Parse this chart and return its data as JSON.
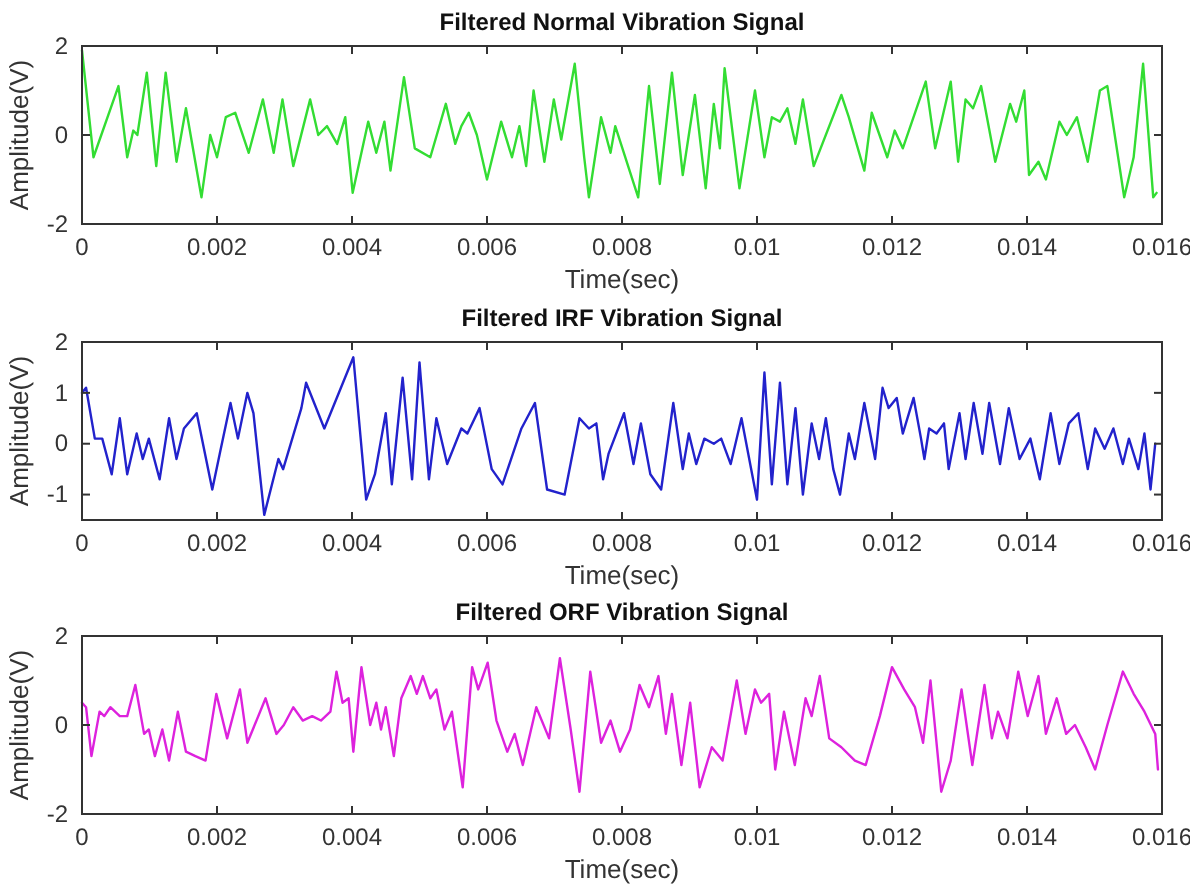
{
  "chart_data": [
    {
      "type": "line",
      "title": "Filtered Normal Vibration Signal",
      "xlabel": "Time(sec)",
      "ylabel": "Amplitude(V)",
      "xlim": [
        0,
        0.016
      ],
      "ylim": [
        -2,
        2
      ],
      "xticks": [
        0,
        0.002,
        0.004,
        0.006,
        0.008,
        0.01,
        0.012,
        0.014,
        0.016
      ],
      "yticks": [
        -2,
        0,
        2
      ],
      "x": [
        0,
        0.00017,
        0.00054,
        0.00067,
        0.00076,
        0.00082,
        0.00096,
        0.0011,
        0.00124,
        0.0014,
        0.00154,
        0.00177,
        0.0019,
        0.002,
        0.00213,
        0.00227,
        0.00247,
        0.00268,
        0.00284,
        0.00297,
        0.00313,
        0.00338,
        0.0035,
        0.00363,
        0.00378,
        0.0039,
        0.00401,
        0.00424,
        0.00436,
        0.00448,
        0.00457,
        0.00477,
        0.00493,
        0.00516,
        0.00539,
        0.00553,
        0.00562,
        0.00573,
        0.00585,
        0.006,
        0.00621,
        0.00637,
        0.00648,
        0.00658,
        0.00669,
        0.00685,
        0.00699,
        0.0071,
        0.0073,
        0.00744,
        0.00751,
        0.00769,
        0.00783,
        0.0079,
        0.00824,
        0.0084,
        0.00856,
        0.00874,
        0.0089,
        0.00908,
        0.00924,
        0.00936,
        0.00945,
        0.00952,
        0.00974,
        0.00997,
        0.01011,
        0.01022,
        0.01034,
        0.01045,
        0.01057,
        0.01068,
        0.01084,
        0.01125,
        0.01136,
        0.01159,
        0.0117,
        0.01193,
        0.01204,
        0.01216,
        0.0125,
        0.01264,
        0.01287,
        0.01298,
        0.01309,
        0.0132,
        0.01332,
        0.01353,
        0.01375,
        0.01384,
        0.01396,
        0.01403,
        0.01417,
        0.01428,
        0.01448,
        0.01459,
        0.01474,
        0.0149,
        0.01508,
        0.01519,
        0.01544,
        0.01558,
        0.01572,
        0.01587,
        0.01592
      ],
      "series": [
        {
          "color": "#33dd33",
          "values": [
            1.9,
            -0.5,
            1.1,
            -0.5,
            0.1,
            0,
            1.4,
            -0.7,
            1.4,
            -0.6,
            0.6,
            -1.4,
            0,
            -0.5,
            0.4,
            0.5,
            -0.4,
            0.8,
            -0.4,
            0.8,
            -0.7,
            0.8,
            0,
            0.2,
            -0.2,
            0.4,
            -1.3,
            0.3,
            -0.4,
            0.3,
            -0.8,
            1.3,
            -0.3,
            -0.5,
            0.7,
            -0.2,
            0.2,
            0.5,
            0,
            -1,
            0.3,
            -0.5,
            0.2,
            -0.7,
            1,
            -0.6,
            0.8,
            -0.1,
            1.6,
            -0.5,
            -1.4,
            0.4,
            -0.4,
            0.2,
            -1.4,
            1.1,
            -1.1,
            1.4,
            -0.9,
            0.9,
            -1.2,
            0.7,
            -0.3,
            1.5,
            -1.2,
            1,
            -0.5,
            0.4,
            0.3,
            0.6,
            -0.2,
            0.8,
            -0.7,
            0.9,
            0.4,
            -0.8,
            0.5,
            -0.5,
            0.1,
            -0.3,
            1.2,
            -0.3,
            1.2,
            -0.6,
            0.8,
            0.6,
            1.1,
            -0.6,
            0.7,
            0.3,
            1,
            -0.9,
            -0.6,
            -1,
            0.3,
            0,
            0.4,
            -0.6,
            1,
            1.1,
            -1.4,
            -0.5,
            1.6,
            -1.4,
            -1.3
          ]
        }
      ]
    },
    {
      "type": "line",
      "title": "Filtered IRF Vibration Signal",
      "xlabel": "Time(sec)",
      "ylabel": "Amplitude(V)",
      "xlim": [
        0,
        0.016
      ],
      "ylim": [
        -1.5,
        2
      ],
      "xticks": [
        0,
        0.002,
        0.004,
        0.006,
        0.008,
        0.01,
        0.012,
        0.014,
        0.016
      ],
      "yticks": [
        -1,
        0,
        1,
        2
      ],
      "x": [
        0,
        6e-05,
        0.00019,
        0.0003,
        0.00044,
        0.00056,
        0.00067,
        0.00081,
        0.0009,
        0.00099,
        0.00115,
        0.00129,
        0.0014,
        0.00151,
        0.0017,
        0.00193,
        0.00204,
        0.0022,
        0.00231,
        0.00245,
        0.00254,
        0.0027,
        0.00291,
        0.00298,
        0.00311,
        0.00325,
        0.00332,
        0.00345,
        0.00359,
        0.00373,
        0.00402,
        0.00421,
        0.00434,
        0.0045,
        0.00459,
        0.00475,
        0.00489,
        0.005,
        0.00514,
        0.00525,
        0.00541,
        0.00562,
        0.00571,
        0.00589,
        0.00607,
        0.00623,
        0.00651,
        0.00671,
        0.00689,
        0.00715,
        0.00737,
        0.00751,
        0.00762,
        0.00772,
        0.0078,
        0.00803,
        0.00817,
        0.00828,
        0.00842,
        0.00858,
        0.00876,
        0.0089,
        0.00899,
        0.0091,
        0.00922,
        0.00936,
        0.00947,
        0.00961,
        0.00977,
        0.01,
        0.01011,
        0.01022,
        0.01034,
        0.01045,
        0.01057,
        0.01068,
        0.01081,
        0.01092,
        0.01102,
        0.01113,
        0.01123,
        0.01136,
        0.01145,
        0.01159,
        0.01175,
        0.01186,
        0.01195,
        0.01207,
        0.01216,
        0.01232,
        0.01243,
        0.01248,
        0.01255,
        0.01266,
        0.01277,
        0.01284,
        0.013,
        0.01309,
        0.01321,
        0.01334,
        0.01344,
        0.0136,
        0.01373,
        0.01389,
        0.01405,
        0.01419,
        0.01435,
        0.01448,
        0.01462,
        0.01476,
        0.0149,
        0.01501,
        0.01515,
        0.01528,
        0.01542,
        0.01551,
        0.01565,
        0.01574,
        0.01583,
        0.0159
      ],
      "series": [
        {
          "color": "#2222cc",
          "values": [
            1,
            1.1,
            0.1,
            0.1,
            -0.6,
            0.5,
            -0.6,
            0.2,
            -0.3,
            0.1,
            -0.7,
            0.5,
            -0.3,
            0.3,
            0.6,
            -0.9,
            -0.2,
            0.8,
            0.1,
            1,
            0.6,
            -1.4,
            -0.3,
            -0.5,
            null,
            0.7,
            1.2,
            null,
            0.3,
            null,
            1.7,
            -1.1,
            -0.6,
            0.6,
            -0.8,
            1.3,
            -0.7,
            1.6,
            -0.7,
            0.5,
            -0.4,
            0.3,
            0.2,
            0.7,
            -0.5,
            -0.8,
            0.3,
            0.8,
            -0.9,
            -1,
            0.5,
            0.3,
            0.4,
            -0.7,
            -0.2,
            0.6,
            -0.4,
            0.4,
            -0.6,
            -0.9,
            0.8,
            -0.5,
            0.2,
            -0.4,
            0.1,
            0,
            0.1,
            -0.4,
            0.5,
            -1.1,
            1.4,
            -0.8,
            1.2,
            -0.8,
            0.7,
            -1,
            0.4,
            -0.3,
            0.5,
            -0.5,
            -1,
            0.2,
            -0.3,
            0.8,
            -0.3,
            1.1,
            0.7,
            0.9,
            0.2,
            0.9,
            0.1,
            -0.3,
            0.3,
            0.2,
            0.4,
            -0.5,
            0.6,
            -0.3,
            0.8,
            -0.2,
            0.8,
            -0.4,
            0.7,
            -0.3,
            0.1,
            -0.7,
            0.6,
            -0.4,
            0.4,
            0.6,
            -0.5,
            0.3,
            -0.1,
            0.3,
            -0.4,
            0.1,
            -0.5,
            0.2,
            -0.9,
            0
          ]
        }
      ]
    },
    {
      "type": "line",
      "title": "Filtered ORF Vibration Signal",
      "xlabel": "Time(sec)",
      "ylabel": "Amplitude(V)",
      "xlim": [
        0,
        0.016
      ],
      "ylim": [
        -2,
        2
      ],
      "xticks": [
        0,
        0.002,
        0.004,
        0.006,
        0.008,
        0.01,
        0.012,
        0.014,
        0.016
      ],
      "yticks": [
        -2,
        0,
        2
      ],
      "x": [
        0,
        6e-05,
        0.00014,
        0.00026,
        0.00033,
        0.00042,
        0.00056,
        0.00067,
        0.00079,
        0.00092,
        0.00099,
        0.00108,
        0.00119,
        0.00129,
        0.00142,
        0.00154,
        0.00168,
        0.00183,
        0.00199,
        0.00215,
        0.00234,
        0.00245,
        0.00272,
        0.00288,
        0.00299,
        0.00313,
        0.00327,
        0.00341,
        0.00354,
        0.00368,
        0.00377,
        0.00386,
        0.00395,
        0.00402,
        0.00414,
        0.00427,
        0.00436,
        0.00443,
        0.0045,
        0.00462,
        0.00473,
        0.00487,
        0.00496,
        0.00505,
        0.00516,
        0.00525,
        0.00537,
        0.00548,
        0.00564,
        0.00578,
        0.00587,
        0.00601,
        0.00614,
        0.0063,
        0.00641,
        0.00653,
        0.00673,
        0.00692,
        0.00708,
        0.00724,
        0.00737,
        0.00753,
        0.00769,
        0.00783,
        0.00797,
        0.00812,
        0.00826,
        0.0084,
        0.00854,
        0.00865,
        0.00874,
        0.00888,
        0.00901,
        0.00915,
        0.00933,
        0.00949,
        0.0097,
        0.00983,
        0.00997,
        0.01006,
        0.01018,
        0.01027,
        0.0104,
        0.01056,
        0.01072,
        0.01081,
        0.01093,
        0.01107,
        0.01125,
        0.01145,
        0.01161,
        0.01182,
        0.012,
        0.01218,
        0.01234,
        0.01246,
        0.01257,
        0.01273,
        0.01287,
        0.01303,
        0.01319,
        0.01337,
        0.01348,
        0.01357,
        0.01371,
        0.01387,
        0.01401,
        0.01417,
        0.01428,
        0.01444,
        0.01458,
        0.01471,
        0.01487,
        0.01501,
        0.01519,
        0.01542,
        0.01558,
        0.01574,
        0.0159,
        0.01594
      ],
      "series": [
        {
          "color": "#dd22dd",
          "values": [
            0.5,
            0.4,
            -0.7,
            0.3,
            0.2,
            0.4,
            0.2,
            0.2,
            0.9,
            -0.2,
            -0.1,
            -0.7,
            -0.1,
            -0.8,
            0.3,
            -0.6,
            -0.7,
            -0.8,
            0.7,
            -0.3,
            0.8,
            -0.4,
            0.6,
            -0.2,
            0,
            0.4,
            0.1,
            0.2,
            0.1,
            0.3,
            1.2,
            0.5,
            0.6,
            -0.6,
            1.3,
            0,
            0.5,
            -0.1,
            0.4,
            -0.7,
            0.6,
            1.1,
            0.7,
            1.1,
            0.6,
            0.8,
            -0.1,
            0.3,
            -1.4,
            1.3,
            0.8,
            1.4,
            0.1,
            -0.6,
            -0.2,
            -0.9,
            0.4,
            -0.3,
            1.5,
            -0.1,
            -1.5,
            1.2,
            -0.4,
            0.1,
            -0.6,
            -0.1,
            0.9,
            0.4,
            1.1,
            -0.2,
            0.7,
            -0.9,
            0.5,
            -1.4,
            -0.5,
            -0.8,
            1,
            -0.2,
            0.8,
            0.5,
            0.7,
            -1,
            0.3,
            -0.9,
            0.6,
            0.2,
            1.1,
            -0.3,
            -0.5,
            -0.8,
            -0.9,
            0.2,
            1.3,
            0.8,
            0.4,
            -0.4,
            1,
            -1.5,
            -0.8,
            0.8,
            -0.9,
            0.9,
            -0.3,
            0.3,
            -0.3,
            1.2,
            0.2,
            1.1,
            -0.2,
            0.6,
            -0.2,
            0,
            -0.5,
            -1,
            0,
            1.2,
            0.7,
            0.3,
            -0.2,
            -1
          ]
        }
      ]
    }
  ]
}
